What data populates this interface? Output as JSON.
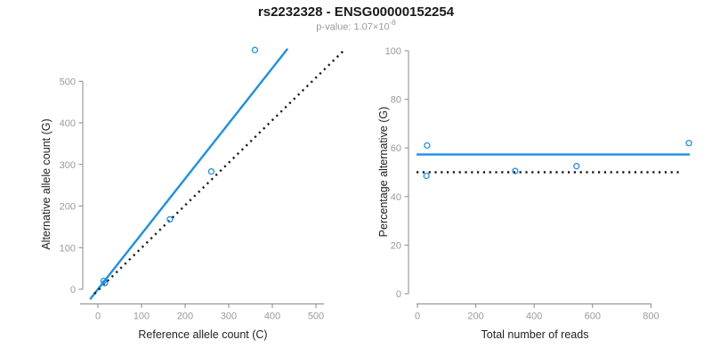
{
  "header": {
    "title": "rs2232328 - ENSG00000152254",
    "pvalue_prefix": "p-value: 1.07×10",
    "pvalue_exponent": "-8"
  },
  "colors": {
    "accent_blue": "#1E8FE6",
    "axis_gray": "#8a8a8a",
    "tick_label_gray": "#9a9a9a",
    "text_black": "#1a1a1a"
  },
  "chart_data": [
    {
      "type": "scatter",
      "name": "allele-count-scatter",
      "title": "rs2232328 - ENSG00000152254",
      "subtitle": "p-value: 1.07×10^-8",
      "xlabel": "Reference allele count (C)",
      "ylabel": "Alternative allele count (G)",
      "xticks": [
        0,
        100,
        200,
        300,
        400,
        500
      ],
      "yticks": [
        0,
        100,
        200,
        300,
        400,
        500
      ],
      "xlim": [
        0,
        560
      ],
      "ylim": [
        0,
        580
      ],
      "grid": false,
      "legend": false,
      "points": [
        [
          13,
          20
        ],
        [
          16,
          15
        ],
        [
          165,
          168
        ],
        [
          260,
          283
        ],
        [
          360,
          575
        ]
      ],
      "lines": [
        {
          "name": "fit-line",
          "style": "solid",
          "color": "blue",
          "x": [
            -18,
            435
          ],
          "y": [
            -24,
            578
          ]
        },
        {
          "name": "identity-line",
          "style": "dotted",
          "color": "black",
          "x": [
            -8,
            565
          ],
          "y": [
            -11,
            575
          ]
        }
      ]
    },
    {
      "type": "scatter",
      "name": "percentage-alternative-scatter",
      "xlabel": "Total number of reads",
      "ylabel": "Percentage alternative (G)",
      "xticks": [
        0,
        200,
        400,
        600,
        800
      ],
      "yticks": [
        0,
        20,
        40,
        60,
        80,
        100
      ],
      "xlim": [
        0,
        940
      ],
      "ylim": [
        0,
        100
      ],
      "grid": false,
      "legend": false,
      "points": [
        [
          33,
          61
        ],
        [
          31,
          48.5
        ],
        [
          335,
          50.5
        ],
        [
          545,
          52.5
        ],
        [
          930,
          62
        ]
      ],
      "lines": [
        {
          "name": "mean-percentage-line",
          "style": "solid",
          "color": "blue",
          "x": [
            -3,
            933
          ],
          "y": [
            57.3,
            57.3
          ]
        },
        {
          "name": "reference-50-percent-line",
          "style": "dotted",
          "color": "black",
          "x": [
            -3,
            908
          ],
          "y": [
            50,
            50
          ]
        }
      ]
    }
  ]
}
